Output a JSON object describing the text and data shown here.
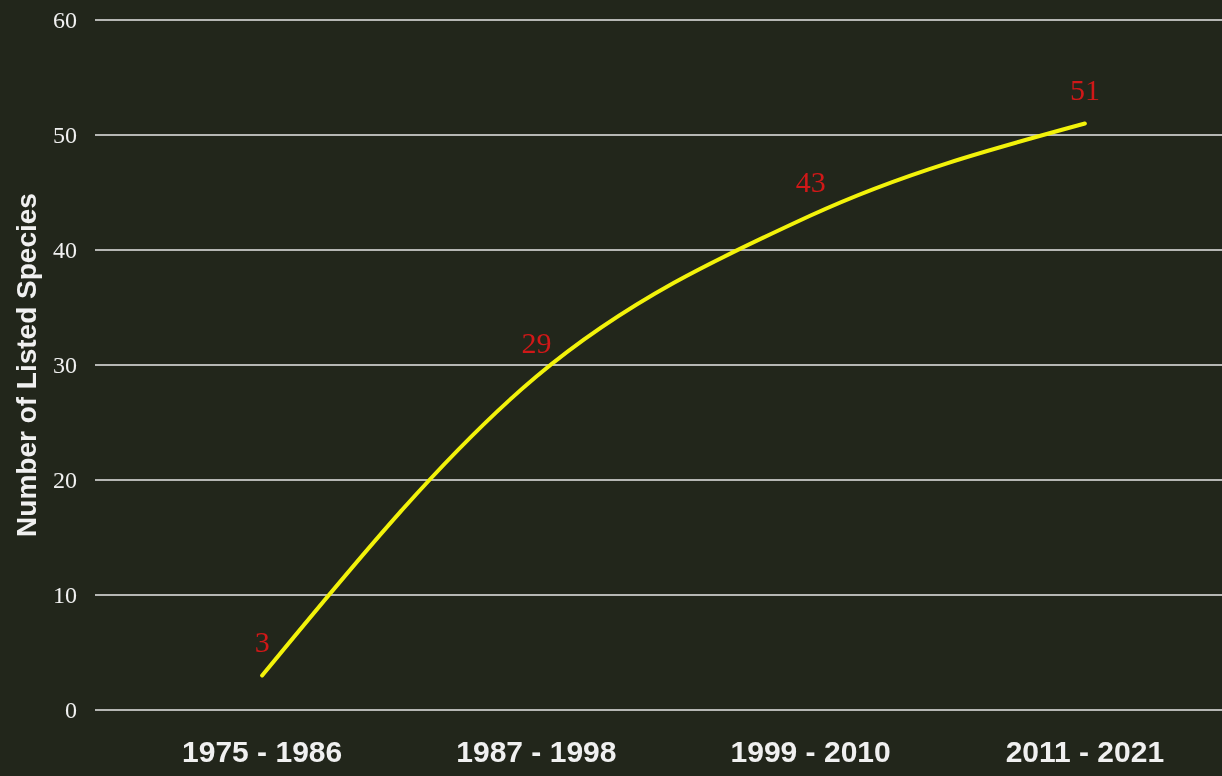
{
  "chart_data": {
    "type": "line",
    "ylabel": "Number of Listed Species",
    "categories": [
      "1975 - 1986",
      "1987 - 1998",
      "1999 - 2010",
      "2011 - 2021"
    ],
    "series": [
      {
        "color": "#f2f20a",
        "values": [
          3,
          29,
          43,
          51
        ]
      }
    ],
    "ylim": [
      0,
      60
    ],
    "yticks": [
      0,
      10,
      20,
      30,
      40,
      50,
      60
    ],
    "grid": "y",
    "data_labels": true,
    "marker": "none",
    "line_style": "solid"
  }
}
